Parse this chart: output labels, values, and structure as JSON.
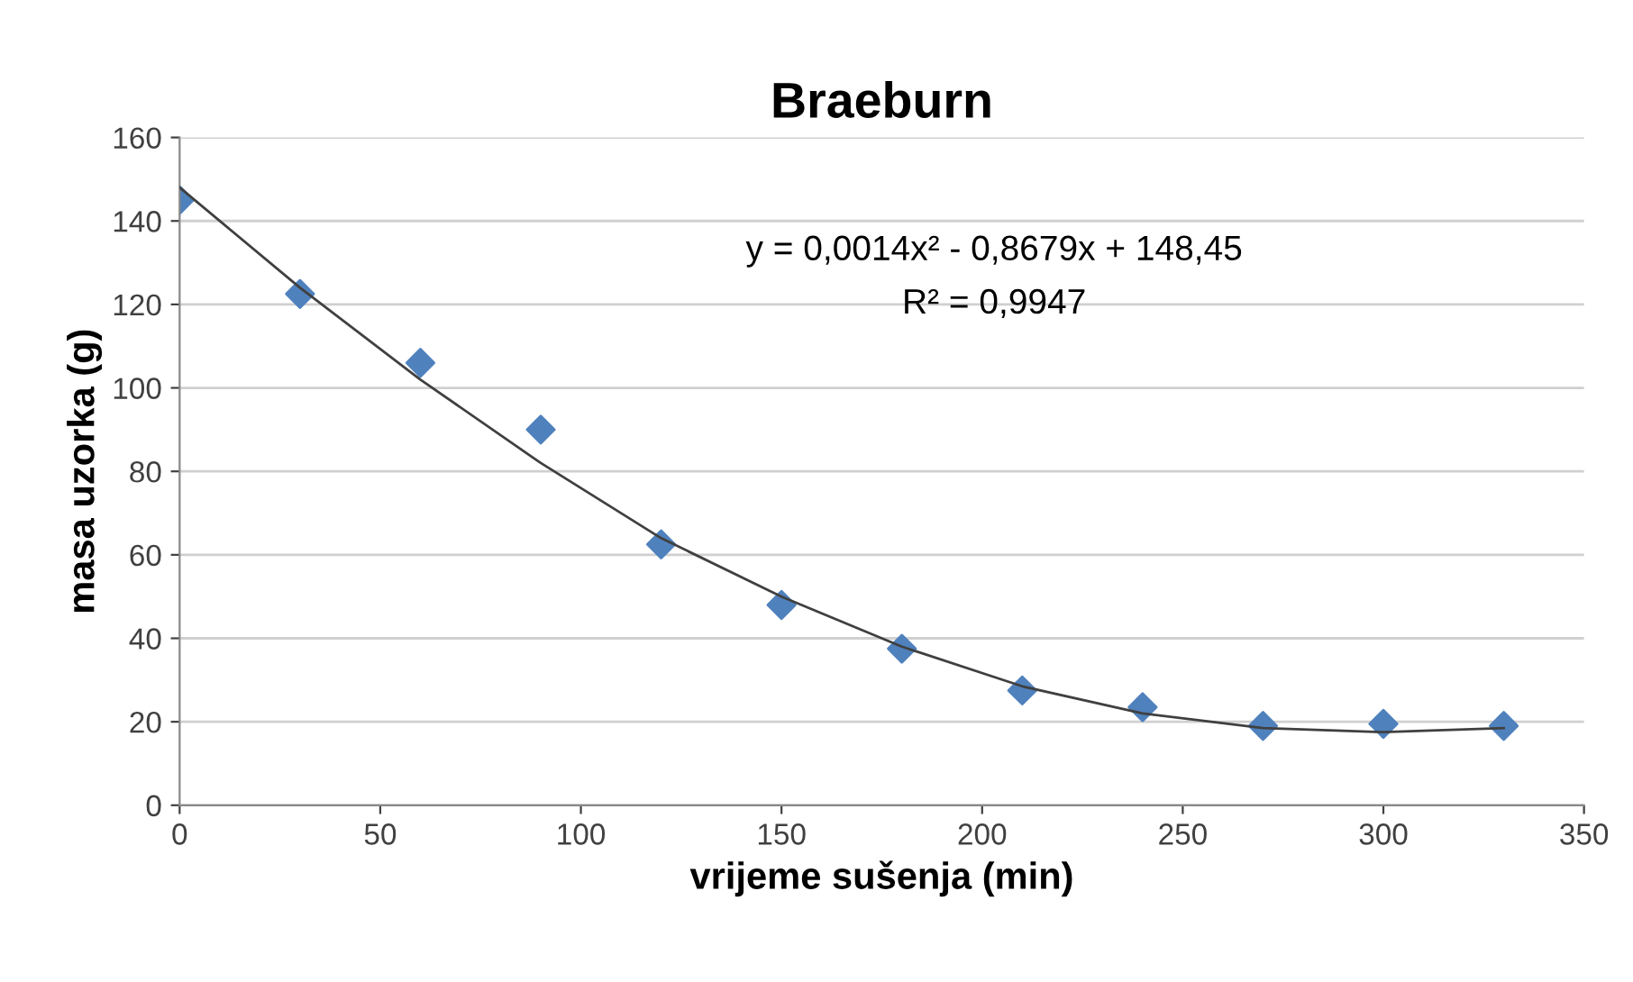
{
  "chart_data": {
    "type": "scatter",
    "title": "Braeburn",
    "xlabel": "vrijeme sušenja (min)",
    "ylabel": "masa uzorka (g)",
    "series": [
      {
        "color": "#4f81bd",
        "marker": "diamond",
        "x": [
          0,
          30,
          60,
          90,
          120,
          150,
          180,
          210,
          240,
          270,
          300,
          330
        ],
        "values": [
          145,
          122.5,
          106,
          90,
          62.5,
          48,
          37.5,
          27.5,
          23.5,
          19,
          19.5,
          19
        ]
      },
      {
        "type": "line",
        "color": "#404040",
        "marker": "none",
        "x": [
          0,
          30,
          60,
          90,
          120,
          150,
          180,
          210,
          240,
          270,
          300,
          330
        ],
        "values": [
          148,
          124,
          102,
          82,
          64,
          50,
          38,
          28.5,
          22,
          18.5,
          17.5,
          18.5
        ]
      }
    ],
    "annotations": [
      "y = 0,0014x² - 0,8679x + 148,45",
      "R² = 0,9947"
    ],
    "xlim": [
      0,
      350
    ],
    "xticks": [
      0,
      50,
      100,
      150,
      200,
      250,
      300,
      350
    ],
    "ylim": [
      0,
      160
    ],
    "yticks": [
      0,
      20,
      40,
      60,
      80,
      100,
      120,
      140,
      160
    ],
    "grid": "y",
    "legend": false
  }
}
